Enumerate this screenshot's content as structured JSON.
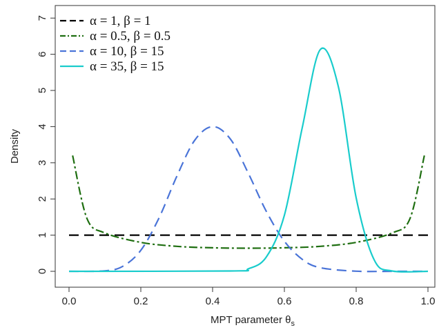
{
  "chart_data": {
    "type": "line",
    "title": "",
    "xlabel": "MPT parameter θ",
    "xlabel_subscript": "s",
    "ylabel": "Density",
    "xlim": [
      0,
      1
    ],
    "ylim": [
      0,
      7
    ],
    "x_ticks": [
      "0.0",
      "0.2",
      "0.4",
      "0.6",
      "0.8",
      "1.0"
    ],
    "y_ticks": [
      "0",
      "1",
      "2",
      "3",
      "4",
      "5",
      "6",
      "7"
    ],
    "grid": false,
    "legend_position": "top-left",
    "legend": [
      "α = 1, β = 1",
      "α = 0.5, β = 0.5",
      "α = 10, β = 15",
      "α = 35, β = 15"
    ],
    "series": [
      {
        "alpha": 1,
        "beta": 1,
        "color": "#000000",
        "dash": "long-dash",
        "x": [
          0.0,
          0.2,
          0.4,
          0.6,
          0.8,
          1.0
        ],
        "values": [
          1.0,
          1.0,
          1.0,
          1.0,
          1.0,
          1.0
        ]
      },
      {
        "alpha": 0.5,
        "beta": 0.5,
        "color": "#1e6e10",
        "dash": "dash-dot",
        "x": [
          0.01,
          0.05,
          0.1,
          0.2,
          0.3,
          0.4,
          0.5,
          0.6,
          0.7,
          0.8,
          0.9,
          0.95,
          0.99
        ],
        "values": [
          3.2,
          1.46,
          1.06,
          0.8,
          0.69,
          0.65,
          0.64,
          0.65,
          0.69,
          0.8,
          1.06,
          1.46,
          3.2
        ]
      },
      {
        "alpha": 10,
        "beta": 15,
        "color": "#4a74d8",
        "dash": "long-dash",
        "x": [
          0.0,
          0.1,
          0.15,
          0.2,
          0.25,
          0.3,
          0.35,
          0.4,
          0.45,
          0.5,
          0.55,
          0.6,
          0.65,
          0.7,
          0.8,
          0.9,
          1.0
        ],
        "values": [
          0.0,
          0.014,
          0.14,
          0.58,
          1.46,
          2.62,
          3.62,
          4.0,
          3.65,
          2.7,
          1.65,
          0.83,
          0.33,
          0.1,
          0.003,
          0.0,
          0.0
        ]
      },
      {
        "alpha": 35,
        "beta": 15,
        "color": "#19cccc",
        "dash": "solid",
        "x": [
          0.0,
          0.45,
          0.5,
          0.55,
          0.6,
          0.65,
          0.7,
          0.75,
          0.8,
          0.85,
          0.9,
          1.0
        ],
        "values": [
          0.0,
          0.01,
          0.07,
          0.4,
          1.55,
          3.98,
          6.13,
          5.12,
          2.03,
          0.32,
          0.01,
          0.0
        ]
      }
    ]
  }
}
